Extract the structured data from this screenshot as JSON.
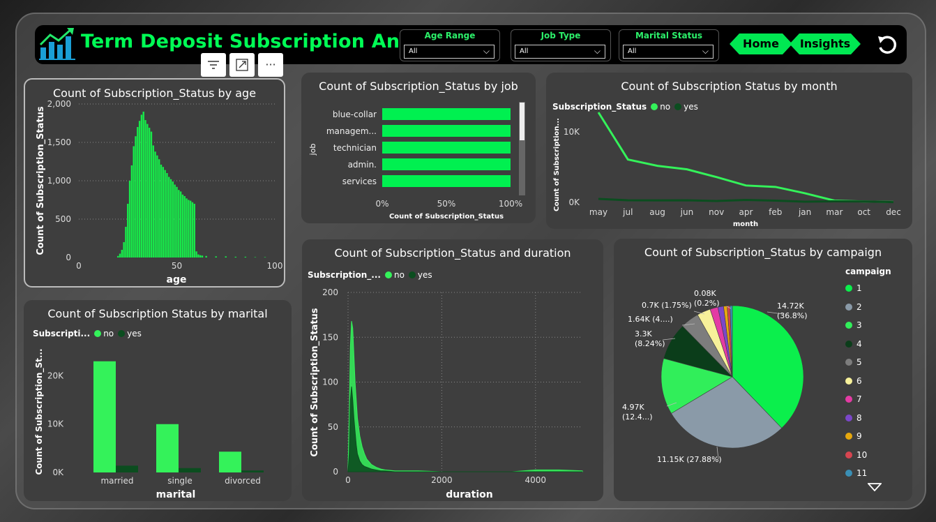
{
  "header": {
    "title": "Term Deposit Subscription Analysis",
    "slicers": [
      {
        "label": "Age Range",
        "value": "All"
      },
      {
        "label": "Job Type",
        "value": "All"
      },
      {
        "label": "Marital Status",
        "value": "All"
      }
    ],
    "nav": {
      "home": "Home",
      "insights": "Insights"
    }
  },
  "toolbar": {
    "filter_icon": "filter-icon",
    "focus_icon": "focus-mode-icon",
    "more_label": "···"
  },
  "colors": {
    "no": "#34f25a",
    "yes": "#0b4d1f",
    "accent": "#00ff55"
  },
  "legend": {
    "no": "no",
    "yes": "yes"
  },
  "chart_data": [
    {
      "id": "age",
      "type": "bar",
      "title": "Count of Subscription_Status by age",
      "xlabel": "age",
      "ylabel": "Count of Subscription_Status",
      "xlim": [
        0,
        100
      ],
      "ylim": [
        0,
        2000
      ],
      "xticks": [
        "0",
        "50",
        "100"
      ],
      "yticks": [
        "0",
        "500",
        "1,000",
        "1,500",
        "2,000"
      ],
      "x": [
        20,
        21,
        22,
        23,
        24,
        25,
        26,
        27,
        28,
        29,
        30,
        31,
        32,
        33,
        34,
        35,
        36,
        37,
        38,
        39,
        40,
        41,
        42,
        43,
        44,
        45,
        46,
        47,
        48,
        49,
        50,
        51,
        52,
        53,
        54,
        55,
        56,
        57,
        58,
        59,
        60,
        61,
        62,
        63,
        65,
        70,
        75,
        80,
        85,
        90,
        95
      ],
      "values": [
        20,
        50,
        100,
        200,
        400,
        700,
        1000,
        1200,
        1450,
        1580,
        1700,
        1780,
        1860,
        1900,
        1790,
        1740,
        1690,
        1640,
        1460,
        1380,
        1330,
        1280,
        1210,
        1180,
        1140,
        1100,
        1050,
        1020,
        990,
        950,
        920,
        880,
        860,
        820,
        800,
        770,
        750,
        740,
        720,
        700,
        80,
        40,
        30,
        25,
        20,
        15,
        15,
        10,
        10,
        5,
        5
      ]
    },
    {
      "id": "job",
      "type": "bar",
      "orientation": "horizontal",
      "title": "Count of Subscription_Status by job",
      "xlabel": "Count of Subscription_Status",
      "ylabel": "job",
      "categories": [
        "blue-collar",
        "managem...",
        "technician",
        "admin.",
        "services"
      ],
      "values": [
        100,
        100,
        100,
        100,
        100
      ],
      "xticks": [
        "0%",
        "50%",
        "100%"
      ]
    },
    {
      "id": "month",
      "type": "line",
      "title": "Count of Subscription Status by month",
      "legend_title": "Subscription_Status",
      "xlabel": "month",
      "ylabel": "Count of Subscription...",
      "categories": [
        "may",
        "jul",
        "aug",
        "jun",
        "nov",
        "apr",
        "feb",
        "jan",
        "mar",
        "oct",
        "dec"
      ],
      "yticks": [
        "0K",
        "10K"
      ],
      "ylim": [
        0,
        13000
      ],
      "series": [
        {
          "name": "no",
          "values": [
            12800,
            6100,
            5200,
            4700,
            3600,
            2400,
            2200,
            1300,
            250,
            120,
            60
          ]
        },
        {
          "name": "yes",
          "values": [
            500,
            300,
            280,
            300,
            200,
            350,
            250,
            100,
            150,
            120,
            40
          ]
        }
      ]
    },
    {
      "id": "marital",
      "type": "bar",
      "title": "Count of Subscription Status by marital",
      "legend_title": "Subscripti...",
      "xlabel": "marital",
      "ylabel": "Count of Subscription_St...",
      "categories": [
        "married",
        "single",
        "divorced"
      ],
      "yticks": [
        "0K",
        "10K",
        "20K"
      ],
      "ylim": [
        0,
        27000
      ],
      "series": [
        {
          "name": "no",
          "values": [
            23000,
            10000,
            4300
          ]
        },
        {
          "name": "yes",
          "values": [
            1400,
            900,
            400
          ]
        }
      ]
    },
    {
      "id": "duration",
      "type": "area",
      "title": "Count of Subscription_Status and duration",
      "legend_title": "Subscription_...",
      "xlabel": "duration",
      "ylabel": "Count of Subscription_Status",
      "xlim": [
        0,
        5000
      ],
      "ylim": [
        0,
        200
      ],
      "xticks": [
        "0",
        "2000",
        "4000"
      ],
      "yticks": [
        "0",
        "50",
        "100",
        "150",
        "200"
      ],
      "x": [
        0,
        25,
        50,
        75,
        100,
        125,
        150,
        175,
        200,
        250,
        300,
        350,
        400,
        500,
        600,
        700,
        800,
        1000,
        1200,
        1500,
        2000,
        2500,
        3000,
        3500,
        4000,
        4500,
        5000
      ],
      "series": [
        {
          "name": "no",
          "values": [
            5,
            60,
            140,
            168,
            160,
            130,
            100,
            80,
            60,
            40,
            28,
            20,
            14,
            8,
            5,
            3,
            2,
            1,
            1,
            1,
            0,
            0,
            0,
            0,
            2,
            2,
            1
          ]
        },
        {
          "name": "yes",
          "values": [
            0,
            20,
            80,
            95,
            80,
            60,
            45,
            30,
            20,
            12,
            8,
            6,
            5,
            3,
            2,
            1,
            1,
            0,
            0,
            0,
            0,
            0,
            0,
            0,
            0,
            0,
            0
          ]
        }
      ]
    },
    {
      "id": "campaign",
      "type": "pie",
      "title": "Count of Subscription_Status by campaign",
      "legend_title": "campaign",
      "categories": [
        "1",
        "2",
        "3",
        "4",
        "5",
        "6",
        "7",
        "8",
        "9",
        "10",
        "11"
      ],
      "values": [
        14720,
        11150,
        4970,
        3300,
        1640,
        1200,
        700,
        500,
        320,
        250,
        200
      ],
      "colors": [
        "#0bef4c",
        "#8a9aa8",
        "#31ee5a",
        "#0b3d1a",
        "#7d7d7d",
        "#f7f19a",
        "#e43ba4",
        "#7b47c9",
        "#e6a80e",
        "#d64550",
        "#3a8fb5"
      ],
      "labels": [
        {
          "text1": "14.72K",
          "text2": "(36.8%)"
        },
        {
          "text1": "11.15K (27.88%)",
          "text2": ""
        },
        {
          "text1": "4.97K",
          "text2": "(12.4...)"
        },
        {
          "text1": "3.3K",
          "text2": "(8.24%)"
        },
        {
          "text1": "1.64K (4....)",
          "text2": ""
        },
        {
          "text1": "0.7K (1.75%)",
          "text2": ""
        },
        {
          "text1": "0.08K",
          "text2": "(0.2%)"
        }
      ]
    }
  ]
}
